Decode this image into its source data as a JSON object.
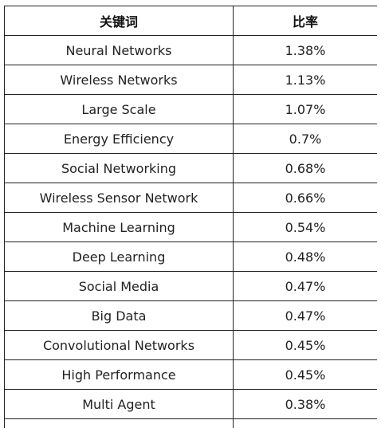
{
  "table": {
    "headers": {
      "keyword": "关键词",
      "ratio": "比率"
    },
    "rows": [
      {
        "keyword": "Neural Networks",
        "ratio": "1.38%"
      },
      {
        "keyword": "Wireless Networks",
        "ratio": "1.13%"
      },
      {
        "keyword": "Large Scale",
        "ratio": "1.07%"
      },
      {
        "keyword": "Energy Efficiency",
        "ratio": "0.7%"
      },
      {
        "keyword": "Social Networking",
        "ratio": "0.68%"
      },
      {
        "keyword": "Wireless Sensor Network",
        "ratio": "0.66%"
      },
      {
        "keyword": "Machine Learning",
        "ratio": "0.54%"
      },
      {
        "keyword": "Deep Learning",
        "ratio": "0.48%"
      },
      {
        "keyword": "Social Media",
        "ratio": "0.47%"
      },
      {
        "keyword": "Big Data",
        "ratio": "0.47%"
      },
      {
        "keyword": "Convolutional Networks",
        "ratio": "0.45%"
      },
      {
        "keyword": "High Performance",
        "ratio": "0.45%"
      },
      {
        "keyword": "Multi Agent",
        "ratio": "0.38%"
      },
      {
        "keyword": "",
        "ratio": ""
      }
    ]
  }
}
